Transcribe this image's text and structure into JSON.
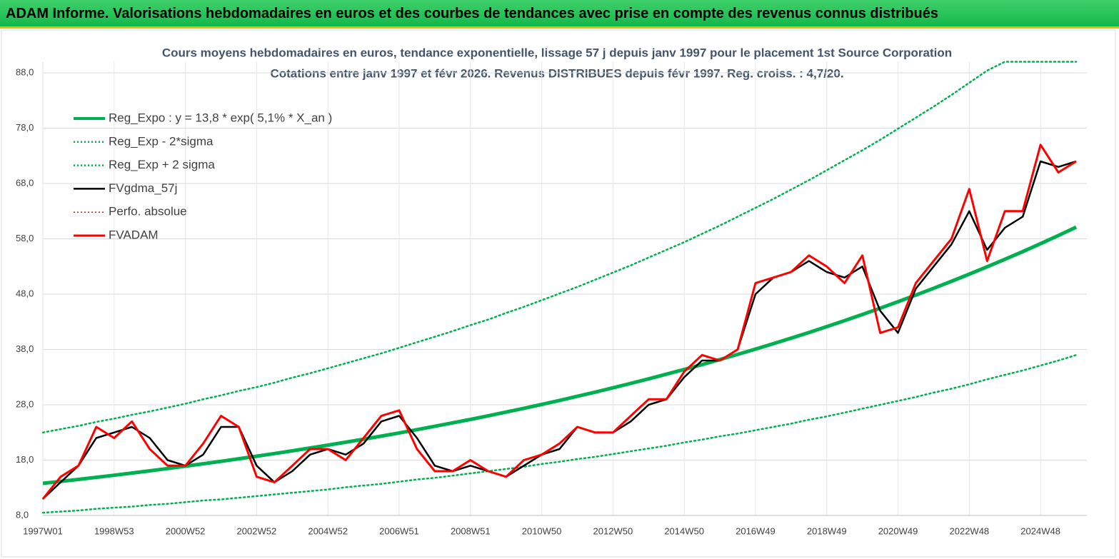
{
  "header": {
    "title": "ADAM Informe. Valorisations hebdomadaires en euros et des courbes de tendances avec prise en compte des revenus connus distribués"
  },
  "chart_data": {
    "type": "line",
    "title": "Cours moyens hebdomadaires en euros, tendance exponentielle, lissage 57 j depuis janv 1997 pour le placement 1st Source Corporation",
    "subtitle": "Cotations entre janv 1997 et févr 2026. Revenus DISTRIBUES depuis févr 1997. Reg. croiss. : 4,7/20.",
    "categories": [
      "1997W01",
      null,
      null,
      null,
      "1998W53",
      null,
      null,
      null,
      "2000W52",
      null,
      null,
      null,
      "2002W52",
      null,
      null,
      null,
      "2004W52",
      null,
      null,
      null,
      "2006W51",
      null,
      null,
      null,
      "2008W51",
      null,
      null,
      null,
      "2010W50",
      null,
      null,
      null,
      "2012W50",
      null,
      null,
      null,
      "2014W50",
      null,
      null,
      null,
      "2016W49",
      null,
      null,
      null,
      "2018W49",
      null,
      null,
      null,
      "2020W49",
      null,
      null,
      null,
      "2022W48",
      null,
      null,
      null,
      "2024W48",
      null,
      null
    ],
    "ylim": [
      8,
      90
    ],
    "yticks": [
      {
        "value": 8,
        "label": "8,0"
      },
      {
        "value": 18,
        "label": "18,0"
      },
      {
        "value": 28,
        "label": "28,0"
      },
      {
        "value": 38,
        "label": "38,0"
      },
      {
        "value": 48,
        "label": "48,0"
      },
      {
        "value": 58,
        "label": "58,0"
      },
      {
        "value": 68,
        "label": "68,0"
      },
      {
        "value": 78,
        "label": "78,0"
      },
      {
        "value": 88,
        "label": "88,0"
      }
    ],
    "grid": true,
    "legend": "top-left",
    "series": [
      {
        "name": "Reg_Expo : y = 13,8 * exp( 5,1% *  X_an )",
        "color": "#00b050",
        "width": 5,
        "dotted": false,
        "values": [
          13.8,
          14.15,
          14.52,
          14.89,
          15.27,
          15.67,
          16.07,
          16.48,
          16.9,
          17.34,
          17.78,
          18.24,
          18.71,
          19.19,
          19.68,
          20.19,
          20.71,
          21.24,
          21.78,
          22.34,
          22.92,
          23.51,
          24.11,
          24.73,
          25.36,
          26.01,
          26.68,
          27.37,
          28.07,
          28.79,
          29.53,
          30.29,
          31.07,
          31.87,
          32.69,
          33.53,
          34.39,
          35.27,
          36.18,
          37.11,
          38.06,
          39.04,
          40.04,
          41.07,
          42.13,
          43.21,
          44.32,
          45.46,
          46.63,
          47.83,
          49.06,
          50.32,
          51.61,
          52.94,
          54.3,
          55.69,
          57.12,
          58.59,
          60.1
        ]
      },
      {
        "name": "Reg_Exp - 2*sigma",
        "color": "#00b050",
        "width": 2.5,
        "dotted": true,
        "values": [
          8.5,
          8.7,
          8.9,
          9.2,
          9.4,
          9.6,
          9.9,
          10.1,
          10.4,
          10.7,
          10.9,
          11.2,
          11.5,
          11.8,
          12.1,
          12.4,
          12.7,
          13.1,
          13.4,
          13.7,
          14.1,
          14.5,
          14.8,
          15.2,
          15.6,
          16.0,
          16.4,
          16.8,
          17.3,
          17.7,
          18.2,
          18.6,
          19.1,
          19.6,
          20.1,
          20.6,
          21.2,
          21.7,
          22.3,
          22.8,
          23.4,
          24.0,
          24.6,
          25.3,
          25.9,
          26.6,
          27.3,
          28.0,
          28.7,
          29.4,
          30.2,
          30.9,
          31.7,
          32.6,
          33.4,
          34.2,
          35.1,
          36.0,
          37.0
        ]
      },
      {
        "name": "Reg_Exp + 2 sigma",
        "color": "#00b050",
        "width": 2.5,
        "dotted": true,
        "values": [
          23.0,
          23.6,
          24.2,
          24.9,
          25.5,
          26.2,
          26.8,
          27.5,
          28.2,
          29.0,
          29.7,
          30.5,
          31.2,
          32.0,
          32.9,
          33.7,
          34.6,
          35.5,
          36.4,
          37.3,
          38.3,
          39.3,
          40.3,
          41.3,
          42.4,
          43.4,
          44.6,
          45.7,
          46.9,
          48.1,
          49.3,
          50.6,
          51.9,
          53.2,
          54.6,
          56.0,
          57.4,
          58.9,
          60.4,
          62.0,
          63.6,
          65.2,
          66.9,
          68.6,
          70.4,
          72.2,
          74.0,
          75.9,
          77.9,
          79.9,
          81.9,
          84.0,
          86.2,
          88.4,
          90,
          90,
          90,
          90,
          90
        ]
      },
      {
        "name": "FVgdma_57j",
        "color": "#000000",
        "width": 2.5,
        "dotted": false,
        "values": [
          11,
          14,
          17,
          22,
          23,
          24,
          22,
          18,
          17,
          19,
          24,
          24,
          17,
          14,
          16,
          19,
          20,
          19,
          21,
          25,
          26,
          22,
          17,
          16,
          17,
          16,
          15,
          17,
          19,
          20,
          24,
          23,
          23,
          25,
          28,
          29,
          33,
          36,
          36,
          38,
          48,
          51,
          52,
          54,
          52,
          51,
          53,
          45,
          41,
          49,
          53,
          57,
          63,
          56,
          60,
          62,
          72,
          71,
          72
        ]
      },
      {
        "name": "Perfo. absolue",
        "color": "#ff0000",
        "width": 1.5,
        "dotted": true,
        "values": [
          11,
          15,
          17,
          24,
          22,
          25,
          20,
          17,
          17,
          21,
          26,
          24,
          15,
          14,
          17,
          20,
          20,
          18,
          22,
          26,
          27,
          20,
          16,
          16,
          18,
          16,
          15,
          18,
          19,
          21,
          24,
          23,
          23,
          26,
          29,
          29,
          34,
          37,
          36,
          38,
          50,
          51,
          52,
          55,
          53,
          50,
          55,
          41,
          42,
          50,
          54,
          58,
          67,
          54,
          63,
          63,
          75,
          70,
          72
        ]
      },
      {
        "name": "FVADAM",
        "color": "#ff0000",
        "width": 3,
        "dotted": false,
        "values": [
          11,
          15,
          17,
          24,
          22,
          25,
          20,
          17,
          17,
          21,
          26,
          24,
          15,
          14,
          17,
          20,
          20,
          18,
          22,
          26,
          27,
          20,
          16,
          16,
          18,
          16,
          15,
          18,
          19,
          21,
          24,
          23,
          23,
          26,
          29,
          29,
          34,
          37,
          36,
          38,
          50,
          51,
          52,
          55,
          53,
          50,
          55,
          41,
          42,
          50,
          54,
          58,
          67,
          54,
          63,
          63,
          75,
          70,
          72
        ]
      }
    ]
  }
}
